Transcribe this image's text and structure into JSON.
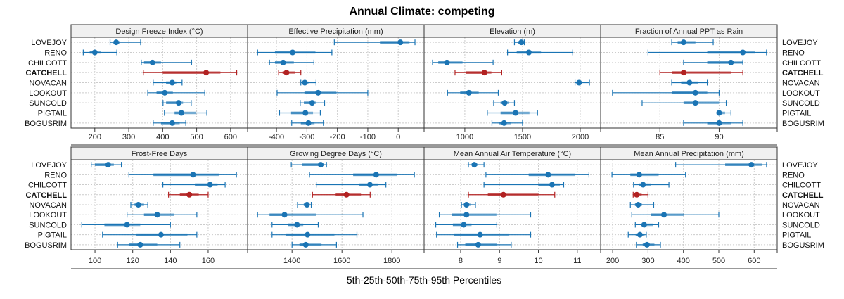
{
  "chart_data": {
    "type": "dotplot-percentile-intervals",
    "title": "Annual Climate: competing",
    "xlabel": "5th-25th-50th-75th-95th Percentiles",
    "ylabel": "",
    "grid": true,
    "highlight_series": "CATCHELL",
    "colors": {
      "default": "#1a74b4",
      "highlight": "#b22222",
      "strip_bg": "#f0f0f0",
      "grid": "#cccccc"
    },
    "categories": [
      "LOVEJOY",
      "RENO",
      "CHILCOTT",
      "CATCHELL",
      "NOVACAN",
      "LOOKOUT",
      "SUNCOLD",
      "PIGTAIL",
      "BOGUSRIM"
    ],
    "panels": [
      {
        "title": "Design Freeze Index (°C)",
        "xlim": [
          130,
          650
        ],
        "ticks": [
          200,
          300,
          400,
          500,
          600
        ],
        "tick_labels": [
          "200",
          "300",
          "400",
          "500",
          "600"
        ],
        "values": [
          {
            "name": "LOVEJOY",
            "p5": 245,
            "p25": 255,
            "p50": 263,
            "p75": 275,
            "p95": 335
          },
          {
            "name": "RENO",
            "p5": 166,
            "p25": 185,
            "p50": 200,
            "p75": 218,
            "p95": 265
          },
          {
            "name": "CHILCOTT",
            "p5": 337,
            "p25": 345,
            "p50": 370,
            "p75": 395,
            "p95": 485
          },
          {
            "name": "CATCHELL",
            "p5": 343,
            "p25": 400,
            "p50": 528,
            "p75": 570,
            "p95": 618
          },
          {
            "name": "NOVACAN",
            "p5": 372,
            "p25": 410,
            "p50": 428,
            "p75": 440,
            "p95": 457
          },
          {
            "name": "LOOKOUT",
            "p5": 356,
            "p25": 382,
            "p50": 406,
            "p75": 430,
            "p95": 524
          },
          {
            "name": "SUNCOLD",
            "p5": 401,
            "p25": 410,
            "p50": 447,
            "p75": 460,
            "p95": 484
          },
          {
            "name": "PIGTAIL",
            "p5": 405,
            "p25": 435,
            "p50": 455,
            "p75": 498,
            "p95": 530
          },
          {
            "name": "BOGUSRIM",
            "p5": 372,
            "p25": 395,
            "p50": 428,
            "p75": 450,
            "p95": 468
          }
        ]
      },
      {
        "title": "Effective Precipitation (mm)",
        "xlim": [
          -495,
          85
        ],
        "ticks": [
          -400,
          -300,
          -200,
          -100,
          0
        ],
        "tick_labels": [
          "-400",
          "-300",
          "-200",
          "-100",
          "0"
        ],
        "values": [
          {
            "name": "LOVEJOY",
            "p5": -210,
            "p25": -60,
            "p50": 7,
            "p75": 37,
            "p95": 55
          },
          {
            "name": "RENO",
            "p5": -462,
            "p25": -405,
            "p50": -347,
            "p75": -272,
            "p95": -218
          },
          {
            "name": "CHILCOTT",
            "p5": -423,
            "p25": -405,
            "p50": -378,
            "p75": -343,
            "p95": -277
          },
          {
            "name": "CATCHELL",
            "p5": -393,
            "p25": -380,
            "p50": -367,
            "p75": -340,
            "p95": -320
          },
          {
            "name": "NOVACAN",
            "p5": -320,
            "p25": -313,
            "p50": -307,
            "p75": -295,
            "p95": -270
          },
          {
            "name": "LOOKOUT",
            "p5": -398,
            "p25": -308,
            "p50": -263,
            "p75": -203,
            "p95": -100
          },
          {
            "name": "SUNCOLD",
            "p5": -322,
            "p25": -310,
            "p50": -283,
            "p75": -270,
            "p95": -242
          },
          {
            "name": "PIGTAIL",
            "p5": -390,
            "p25": -352,
            "p50": -305,
            "p75": -280,
            "p95": -256
          },
          {
            "name": "BOGUSRIM",
            "p5": -350,
            "p25": -320,
            "p50": -295,
            "p75": -275,
            "p95": -246
          }
        ]
      },
      {
        "title": "Elevation (m)",
        "xlim": [
          647,
          2177
        ],
        "ticks": [
          1000,
          1500,
          2000
        ],
        "tick_labels": [
          "1000",
          "1500",
          "2000"
        ],
        "values": [
          {
            "name": "LOVEJOY",
            "p5": 1430,
            "p25": 1460,
            "p50": 1490,
            "p75": 1505,
            "p95": 1515
          },
          {
            "name": "RENO",
            "p5": 1370,
            "p25": 1450,
            "p50": 1555,
            "p75": 1660,
            "p95": 1935
          },
          {
            "name": "CHILCOTT",
            "p5": 720,
            "p25": 770,
            "p50": 845,
            "p75": 980,
            "p95": 1245
          },
          {
            "name": "CATCHELL",
            "p5": 915,
            "p25": 1010,
            "p50": 1170,
            "p75": 1230,
            "p95": 1320
          },
          {
            "name": "NOVACAN",
            "p5": 1955,
            "p25": 1970,
            "p50": 1990,
            "p75": 2015,
            "p95": 2080
          },
          {
            "name": "LOOKOUT",
            "p5": 850,
            "p25": 960,
            "p50": 1035,
            "p75": 1120,
            "p95": 1290
          },
          {
            "name": "SUNCOLD",
            "p5": 1250,
            "p25": 1310,
            "p50": 1345,
            "p75": 1380,
            "p95": 1430
          },
          {
            "name": "PIGTAIL",
            "p5": 1195,
            "p25": 1310,
            "p50": 1440,
            "p75": 1560,
            "p95": 1630
          },
          {
            "name": "BOGUSRIM",
            "p5": 1235,
            "p25": 1300,
            "p50": 1340,
            "p75": 1400,
            "p95": 1500
          }
        ]
      },
      {
        "title": "Fraction of Annual PPT as Rain",
        "xlim": [
          80.0,
          94.9
        ],
        "ticks": [
          85,
          90
        ],
        "tick_labels": [
          "85",
          "90"
        ],
        "values": [
          {
            "name": "LOVEJOY",
            "p5": 86.0,
            "p25": 86.5,
            "p50": 87.0,
            "p75": 88.0,
            "p95": 89.5
          },
          {
            "name": "RENO",
            "p5": 84.0,
            "p25": 89.0,
            "p50": 92.0,
            "p75": 93.0,
            "p95": 94.0
          },
          {
            "name": "CHILCOTT",
            "p5": 87.0,
            "p25": 89.0,
            "p50": 91.0,
            "p75": 92.0,
            "p95": 92.0
          },
          {
            "name": "CATCHELL",
            "p5": 85.0,
            "p25": 86.0,
            "p50": 87.0,
            "p75": 91.0,
            "p95": 92.0
          },
          {
            "name": "NOVACAN",
            "p5": 86.0,
            "p25": 86.8,
            "p50": 87.5,
            "p75": 88.2,
            "p95": 89.0
          },
          {
            "name": "LOOKOUT",
            "p5": 81.0,
            "p25": 86.0,
            "p50": 88.0,
            "p75": 89.0,
            "p95": 90.0
          },
          {
            "name": "SUNCOLD",
            "p5": 83.5,
            "p25": 87.0,
            "p50": 88.0,
            "p75": 90.0,
            "p95": 90.6
          },
          {
            "name": "PIGTAIL",
            "p5": 90.0,
            "p25": 90.0,
            "p50": 90.0,
            "p75": 90.5,
            "p95": 91.0
          },
          {
            "name": "BOGUSRIM",
            "p5": 87.0,
            "p25": 89.0,
            "p50": 90.0,
            "p75": 91.0,
            "p95": 92.0
          }
        ]
      },
      {
        "title": "Frost-Free Days",
        "xlim": [
          87.3,
          180.9
        ],
        "ticks": [
          100,
          120,
          140,
          160
        ],
        "tick_labels": [
          "100",
          "120",
          "140",
          "160"
        ],
        "values": [
          {
            "name": "LOVEJOY",
            "p5": 98,
            "p25": 100,
            "p50": 107,
            "p75": 110,
            "p95": 114
          },
          {
            "name": "RENO",
            "p5": 118,
            "p25": 131,
            "p50": 152,
            "p75": 166,
            "p95": 175
          },
          {
            "name": "CHILCOTT",
            "p5": 136,
            "p25": 153,
            "p50": 161,
            "p75": 165,
            "p95": 169
          },
          {
            "name": "CATCHELL",
            "p5": 139,
            "p25": 145,
            "p50": 150,
            "p75": 155,
            "p95": 160
          },
          {
            "name": "NOVACAN",
            "p5": 119,
            "p25": 121,
            "p50": 123,
            "p75": 126,
            "p95": 128
          },
          {
            "name": "LOOKOUT",
            "p5": 117,
            "p25": 126,
            "p50": 133,
            "p75": 142,
            "p95": 154
          },
          {
            "name": "SUNCOLD",
            "p5": 93,
            "p25": 105,
            "p50": 117,
            "p75": 124,
            "p95": 140
          },
          {
            "name": "PIGTAIL",
            "p5": 104,
            "p25": 122,
            "p50": 135,
            "p75": 149,
            "p95": 154
          },
          {
            "name": "BOGUSRIM",
            "p5": 112,
            "p25": 118,
            "p50": 124,
            "p75": 133,
            "p95": 145
          }
        ]
      },
      {
        "title": "Growing Degree Days (°C)",
        "xlim": [
          1222,
          1929
        ],
        "ticks": [
          1400,
          1600,
          1800
        ],
        "tick_labels": [
          "1400",
          "1600",
          "1800"
        ],
        "values": [
          {
            "name": "LOVEJOY",
            "p5": 1397,
            "p25": 1440,
            "p50": 1515,
            "p75": 1527,
            "p95": 1538
          },
          {
            "name": "RENO",
            "p5": 1470,
            "p25": 1645,
            "p50": 1737,
            "p75": 1822,
            "p95": 1890
          },
          {
            "name": "CHILCOTT",
            "p5": 1497,
            "p25": 1670,
            "p50": 1712,
            "p75": 1745,
            "p95": 1776
          },
          {
            "name": "CATCHELL",
            "p5": 1482,
            "p25": 1575,
            "p50": 1618,
            "p75": 1676,
            "p95": 1713
          },
          {
            "name": "NOVACAN",
            "p5": 1422,
            "p25": 1447,
            "p50": 1460,
            "p75": 1470,
            "p95": 1477
          },
          {
            "name": "LOOKOUT",
            "p5": 1262,
            "p25": 1310,
            "p50": 1370,
            "p75": 1497,
            "p95": 1684
          },
          {
            "name": "SUNCOLD",
            "p5": 1320,
            "p25": 1385,
            "p50": 1420,
            "p75": 1445,
            "p95": 1505
          },
          {
            "name": "PIGTAIL",
            "p5": 1320,
            "p25": 1375,
            "p50": 1462,
            "p75": 1570,
            "p95": 1660
          },
          {
            "name": "BOGUSRIM",
            "p5": 1400,
            "p25": 1430,
            "p50": 1455,
            "p75": 1518,
            "p95": 1578
          }
        ]
      },
      {
        "title": "Mean Annual Air Temperature (°C)",
        "xlim": [
          7.06,
          11.6
        ],
        "ticks": [
          8,
          9,
          10,
          11
        ],
        "tick_labels": [
          "8",
          "9",
          "10",
          "11"
        ],
        "values": [
          {
            "name": "LOVEJOY",
            "p5": 8.2,
            "p25": 8.3,
            "p50": 8.35,
            "p75": 8.45,
            "p95": 8.6
          },
          {
            "name": "RENO",
            "p5": 8.65,
            "p25": 9.75,
            "p50": 10.25,
            "p75": 10.95,
            "p95": 11.3
          },
          {
            "name": "CHILCOTT",
            "p5": 8.6,
            "p25": 10.0,
            "p50": 10.35,
            "p75": 10.55,
            "p95": 10.65
          },
          {
            "name": "CATCHELL",
            "p5": 8.2,
            "p25": 8.7,
            "p50": 9.1,
            "p75": 10.0,
            "p95": 10.42
          },
          {
            "name": "NOVACAN",
            "p5": 8.02,
            "p25": 8.1,
            "p50": 8.15,
            "p75": 8.25,
            "p95": 8.38
          },
          {
            "name": "LOOKOUT",
            "p5": 7.45,
            "p25": 7.78,
            "p50": 8.15,
            "p75": 8.92,
            "p95": 9.8
          },
          {
            "name": "SUNCOLD",
            "p5": 7.36,
            "p25": 7.8,
            "p50": 8.08,
            "p75": 8.28,
            "p95": 8.93
          },
          {
            "name": "PIGTAIL",
            "p5": 7.38,
            "p25": 7.83,
            "p50": 8.5,
            "p75": 9.25,
            "p95": 9.8
          },
          {
            "name": "BOGUSRIM",
            "p5": 7.92,
            "p25": 8.12,
            "p50": 8.45,
            "p75": 8.93,
            "p95": 9.3
          }
        ]
      },
      {
        "title": "Mean Annual Precipitation (mm)",
        "xlim": [
          166,
          665
        ],
        "ticks": [
          200,
          300,
          400,
          500,
          600
        ],
        "tick_labels": [
          "200",
          "300",
          "400",
          "500",
          "600"
        ],
        "values": [
          {
            "name": "LOVEJOY",
            "p5": 378,
            "p25": 518,
            "p50": 592,
            "p75": 623,
            "p95": 635
          },
          {
            "name": "RENO",
            "p5": 198,
            "p25": 250,
            "p50": 275,
            "p75": 330,
            "p95": 406
          },
          {
            "name": "CHILCOTT",
            "p5": 259,
            "p25": 275,
            "p50": 286,
            "p75": 308,
            "p95": 359
          },
          {
            "name": "CATCHELL",
            "p5": 258,
            "p25": 262,
            "p50": 268,
            "p75": 282,
            "p95": 300
          },
          {
            "name": "NOVACAN",
            "p5": 250,
            "p25": 263,
            "p50": 272,
            "p75": 283,
            "p95": 316
          },
          {
            "name": "LOOKOUT",
            "p5": 254,
            "p25": 308,
            "p50": 345,
            "p75": 402,
            "p95": 500
          },
          {
            "name": "SUNCOLD",
            "p5": 264,
            "p25": 280,
            "p50": 289,
            "p75": 315,
            "p95": 330
          },
          {
            "name": "PIGTAIL",
            "p5": 244,
            "p25": 265,
            "p50": 277,
            "p75": 290,
            "p95": 295
          },
          {
            "name": "BOGUSRIM",
            "p5": 267,
            "p25": 285,
            "p50": 297,
            "p75": 318,
            "p95": 335
          }
        ]
      }
    ]
  }
}
